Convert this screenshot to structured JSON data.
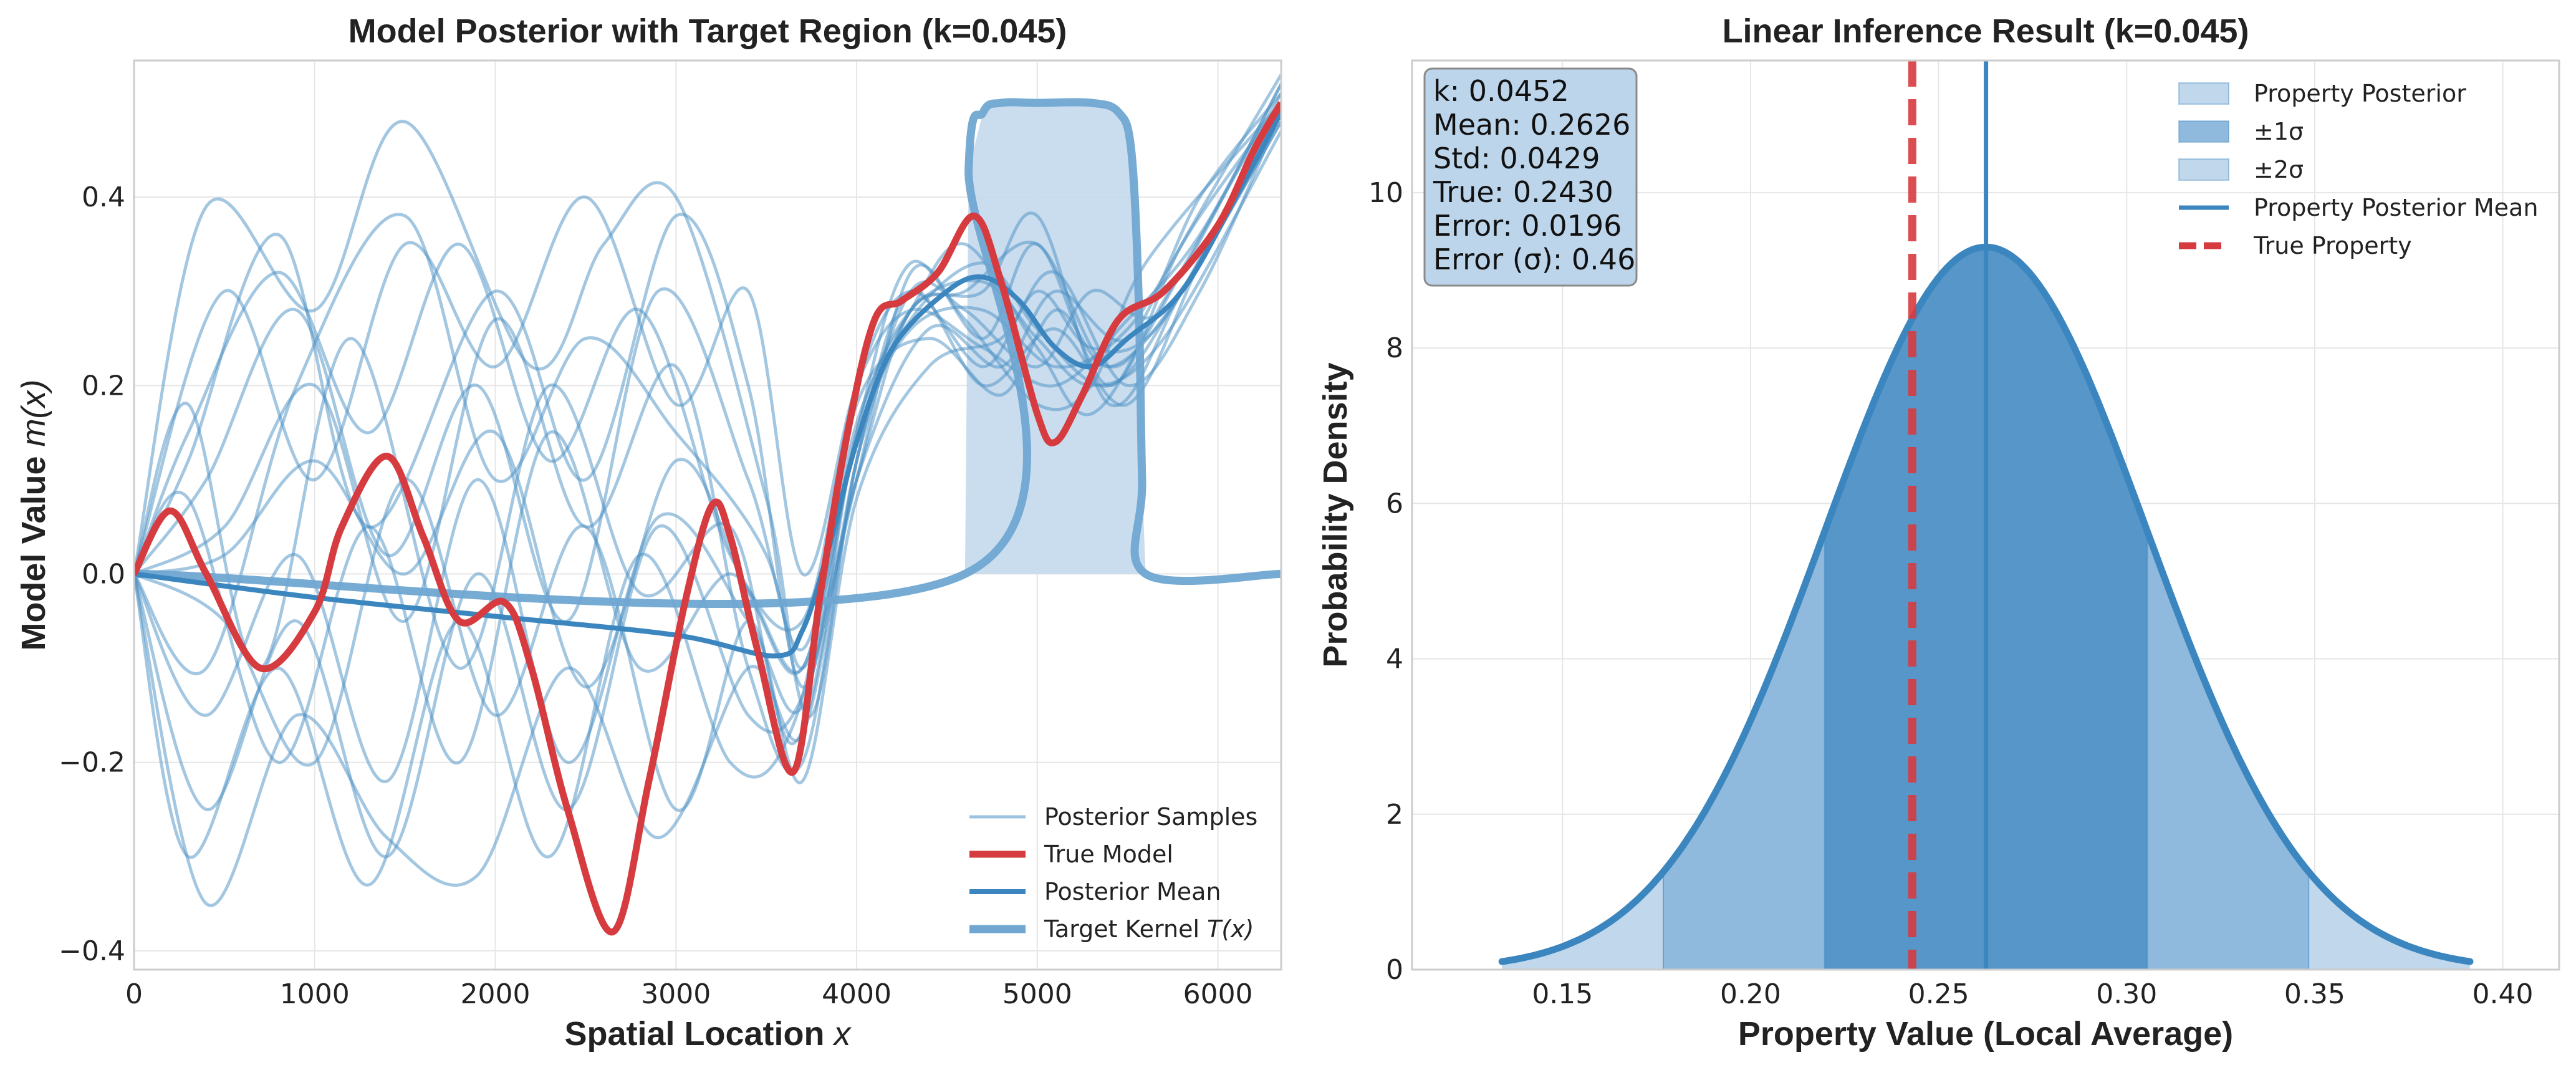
{
  "chart_data": [
    {
      "type": "line",
      "title": "Model Posterior with Target Region (k=0.045)",
      "xlabel": "Spatial Location",
      "xlabel_var": "x",
      "ylabel": "Model Value",
      "ylabel_var": "m(x)",
      "xlim": [
        0,
        6350
      ],
      "ylim": [
        -0.42,
        0.545
      ],
      "xticks": [
        0,
        1000,
        2000,
        3000,
        4000,
        5000,
        6000
      ],
      "yticks": [
        -0.4,
        -0.2,
        0.0,
        0.2,
        0.4
      ],
      "ytick_labels": [
        "−0.4",
        "−0.2",
        "0.0",
        "0.2",
        "0.4"
      ],
      "grid": true,
      "legend_position": "lower-right",
      "legend": [
        {
          "label": "Posterior Samples",
          "style": "samples"
        },
        {
          "label": "True Model",
          "style": "true"
        },
        {
          "label": "Posterior Mean",
          "style": "mean"
        },
        {
          "label": "Target Kernel",
          "label_var": "T(x)",
          "style": "kernel"
        }
      ],
      "true_model": {
        "name": "True Model",
        "x": [
          0,
          200,
          400,
          700,
          1000,
          1150,
          1400,
          1600,
          1800,
          2050,
          2200,
          2400,
          2650,
          2850,
          3050,
          3200,
          3300,
          3450,
          3650,
          3800,
          3950,
          4100,
          4250,
          4450,
          4650,
          4800,
          5000,
          5100,
          5250,
          5450,
          5700,
          6000,
          6200,
          6350
        ],
        "y": [
          0.0,
          0.067,
          0.0,
          -0.1,
          -0.04,
          0.05,
          0.125,
          0.04,
          -0.05,
          -0.03,
          -0.1,
          -0.25,
          -0.38,
          -0.22,
          -0.03,
          0.073,
          0.04,
          -0.08,
          -0.21,
          -0.02,
          0.15,
          0.27,
          0.29,
          0.32,
          0.38,
          0.31,
          0.17,
          0.14,
          0.19,
          0.27,
          0.3,
          0.37,
          0.45,
          0.5
        ]
      },
      "posterior_mean": {
        "name": "Posterior Mean",
        "x": [
          0,
          1000,
          2000,
          3000,
          3550,
          3700,
          3850,
          4000,
          4200,
          4500,
          4700,
          4900,
          5100,
          5300,
          5500,
          5800,
          6100,
          6350
        ],
        "y": [
          0.0,
          -0.025,
          -0.045,
          -0.065,
          -0.087,
          -0.06,
          0.03,
          0.14,
          0.24,
          0.3,
          0.315,
          0.29,
          0.24,
          0.22,
          0.25,
          0.3,
          0.4,
          0.49
        ]
      },
      "target_kernel": {
        "name": "Target Kernel",
        "x": [
          0,
          4600,
          4620,
          4700,
          4800,
          5000,
          5300,
          5450,
          5520,
          5560,
          5580,
          5600,
          6350
        ],
        "y": [
          0.0,
          0.0,
          0.43,
          0.49,
          0.5,
          0.5,
          0.5,
          0.49,
          0.45,
          0.3,
          0.1,
          0.0,
          0.0
        ]
      },
      "posterior_samples": [
        {
          "x": [
            0,
            400,
            1000,
            1500,
            2200,
            2600,
            3000,
            3500,
            3700,
            4000,
            4300,
            4700,
            5000,
            5400,
            5800,
            6350
          ],
          "y": [
            0,
            0.39,
            0.28,
            0.48,
            0.22,
            0.35,
            0.4,
            0.08,
            -0.1,
            0.1,
            0.28,
            0.3,
            0.38,
            0.18,
            0.3,
            0.5
          ]
        },
        {
          "x": [
            0,
            300,
            800,
            1300,
            2000,
            2500,
            3000,
            3400,
            3700,
            4000,
            4300,
            4700,
            5000,
            5400,
            5800,
            6350
          ],
          "y": [
            0,
            0.12,
            0.36,
            0.05,
            0.3,
            0.1,
            0.38,
            0.2,
            -0.12,
            0.15,
            0.33,
            0.25,
            0.35,
            0.2,
            0.35,
            0.53
          ]
        },
        {
          "x": [
            0,
            400,
            900,
            1500,
            2000,
            2500,
            3000,
            3500,
            3750,
            4000,
            4300,
            4600,
            5000,
            5300,
            5700,
            6350
          ],
          "y": [
            0,
            -0.1,
            0.2,
            0.38,
            0.1,
            0.25,
            0.15,
            0.02,
            -0.15,
            0.12,
            0.3,
            0.28,
            0.22,
            0.3,
            0.28,
            0.48
          ]
        },
        {
          "x": [
            0,
            300,
            700,
            1200,
            1800,
            2300,
            2800,
            3300,
            3650,
            4000,
            4400,
            4800,
            5100,
            5500,
            5900,
            6350
          ],
          "y": [
            0,
            0.18,
            -0.1,
            0.25,
            -0.1,
            0.2,
            -0.02,
            0.05,
            -0.18,
            0.1,
            0.26,
            0.22,
            0.3,
            0.25,
            0.4,
            0.51
          ]
        },
        {
          "x": [
            0,
            500,
            1000,
            1500,
            2000,
            2500,
            3000,
            3400,
            3700,
            4000,
            4300,
            4700,
            5100,
            5500,
            5900,
            6350
          ],
          "y": [
            0,
            0.05,
            0.2,
            -0.05,
            0.27,
            0.05,
            0.22,
            -0.1,
            -0.2,
            0.12,
            0.3,
            0.2,
            0.26,
            0.18,
            0.33,
            0.5
          ]
        },
        {
          "x": [
            0,
            400,
            900,
            1400,
            1900,
            2400,
            2900,
            3400,
            3700,
            4000,
            4300,
            4700,
            5000,
            5300,
            5700,
            6350
          ],
          "y": [
            0,
            -0.15,
            0.02,
            -0.22,
            0.1,
            -0.2,
            0.06,
            -0.05,
            -0.14,
            0.15,
            0.28,
            0.31,
            0.25,
            0.2,
            0.25,
            0.47
          ]
        },
        {
          "x": [
            0,
            300,
            800,
            1300,
            1800,
            2300,
            2800,
            3300,
            3700,
            4000,
            4400,
            4800,
            5100,
            5400,
            5800,
            6350
          ],
          "y": [
            0,
            0.08,
            -0.2,
            0.05,
            -0.2,
            0.15,
            -0.1,
            0.0,
            -0.1,
            0.18,
            0.25,
            0.19,
            0.28,
            0.22,
            0.3,
            0.49
          ]
        },
        {
          "x": [
            0,
            400,
            900,
            1400,
            1900,
            2400,
            2900,
            3400,
            3700,
            4000,
            4300,
            4600,
            5000,
            5300,
            5600,
            6350
          ],
          "y": [
            0,
            -0.25,
            -0.05,
            -0.3,
            0.0,
            -0.25,
            0.05,
            -0.15,
            -0.13,
            0.1,
            0.32,
            0.27,
            0.18,
            0.2,
            0.33,
            0.5
          ]
        },
        {
          "x": [
            0,
            500,
            1000,
            1500,
            2000,
            2500,
            3000,
            3400,
            3700,
            4000,
            4300,
            4700,
            5100,
            5500,
            5900,
            6350
          ],
          "y": [
            0,
            0.3,
            0.1,
            0.35,
            0.22,
            0.4,
            0.18,
            0.3,
            0.0,
            0.2,
            0.28,
            0.24,
            0.2,
            0.27,
            0.36,
            0.52
          ]
        },
        {
          "x": [
            0,
            300,
            800,
            1300,
            1800,
            2300,
            2800,
            3300,
            3650,
            4000,
            4300,
            4700,
            5000,
            5400,
            5800,
            6350
          ],
          "y": [
            0,
            -0.3,
            -0.1,
            -0.33,
            -0.05,
            -0.3,
            0.02,
            -0.2,
            -0.16,
            0.14,
            0.27,
            0.33,
            0.26,
            0.2,
            0.3,
            0.48
          ]
        },
        {
          "x": [
            0,
            400,
            900,
            1400,
            1900,
            2400,
            2900,
            3400,
            3700,
            4000,
            4300,
            4600,
            5000,
            5300,
            5700,
            6350
          ],
          "y": [
            0,
            0.1,
            0.28,
            0.02,
            0.2,
            -0.05,
            0.3,
            0.1,
            -0.08,
            0.16,
            0.28,
            0.35,
            0.24,
            0.17,
            0.29,
            0.51
          ]
        },
        {
          "x": [
            0,
            500,
            1000,
            1500,
            2000,
            2500,
            3000,
            3400,
            3700,
            4000,
            4400,
            4800,
            5100,
            5500,
            5900,
            6350
          ],
          "y": [
            0,
            -0.05,
            -0.2,
            0.1,
            -0.15,
            0.05,
            -0.25,
            -0.05,
            -0.22,
            0.08,
            0.22,
            0.25,
            0.32,
            0.2,
            0.3,
            0.49
          ]
        },
        {
          "x": [
            0,
            300,
            800,
            1300,
            1800,
            2300,
            2800,
            3300,
            3700,
            4000,
            4300,
            4700,
            5000,
            5300,
            5700,
            6350
          ],
          "y": [
            0,
            0.15,
            0.32,
            0.15,
            0.35,
            0.12,
            0.28,
            0.02,
            -0.05,
            0.2,
            0.3,
            0.22,
            0.3,
            0.24,
            0.27,
            0.5
          ]
        },
        {
          "x": [
            0,
            400,
            900,
            1400,
            1900,
            2400,
            2900,
            3400,
            3700,
            4000,
            4300,
            4600,
            5000,
            5400,
            5800,
            6350
          ],
          "y": [
            0,
            -0.35,
            -0.15,
            -0.28,
            -0.32,
            -0.1,
            -0.28,
            -0.1,
            -0.17,
            0.12,
            0.28,
            0.3,
            0.35,
            0.22,
            0.32,
            0.52
          ]
        },
        {
          "x": [
            0,
            500,
            1000,
            1500,
            2000,
            2500,
            3000,
            3400,
            3700,
            4000,
            4300,
            4700,
            5100,
            5500,
            5900,
            6350
          ],
          "y": [
            0,
            0.02,
            0.12,
            0.0,
            0.15,
            -0.12,
            0.12,
            -0.02,
            -0.1,
            0.14,
            0.26,
            0.28,
            0.22,
            0.26,
            0.38,
            0.5
          ]
        }
      ]
    },
    {
      "type": "area",
      "title": "Linear Inference Result (k=0.045)",
      "xlabel": "Property Value (Local Average)",
      "ylabel": "Probability Density",
      "xlim": [
        0.11,
        0.415
      ],
      "ylim": [
        0,
        11.7
      ],
      "xticks": [
        0.15,
        0.2,
        0.25,
        0.3,
        0.35,
        0.4
      ],
      "xtick_labels": [
        "0.15",
        "0.20",
        "0.25",
        "0.30",
        "0.35",
        "0.40"
      ],
      "yticks": [
        0,
        2,
        4,
        6,
        8,
        10
      ],
      "ytick_labels": [
        "0",
        "2",
        "4",
        "6",
        "8",
        "10"
      ],
      "grid": true,
      "legend_position": "top-right",
      "legend": [
        {
          "label": "Property Posterior",
          "style": "band3"
        },
        {
          "label": "±1σ",
          "style": "band1"
        },
        {
          "label": "±2σ",
          "style": "band2"
        },
        {
          "label": "Property Posterior Mean",
          "style": "meanline"
        },
        {
          "label": "True Property",
          "style": "trueline"
        }
      ],
      "distribution": {
        "mean": 0.2626,
        "std": 0.0429,
        "x_range": [
          0.1339,
          0.3913
        ]
      },
      "true_value": 0.243,
      "stats_box": {
        "position": "top-left",
        "lines": [
          "k: 0.0452",
          "Mean: 0.2626",
          "Std: 0.0429",
          "True: 0.2430",
          "Error: 0.0196",
          "Error (σ): 0.46"
        ]
      }
    }
  ],
  "colors": {
    "sample": "#4a8fc4",
    "true": "#d63b3f",
    "mean": "#3c86bf",
    "kernel": "#6fa7d2",
    "kernel_fill": "#c4d9ec",
    "band3": "#c1d7eb",
    "band2": "#8fb9dd",
    "band1": "#5696c9",
    "stats_bg": "#b8d3ea",
    "stats_border": "#8a8a8a"
  }
}
